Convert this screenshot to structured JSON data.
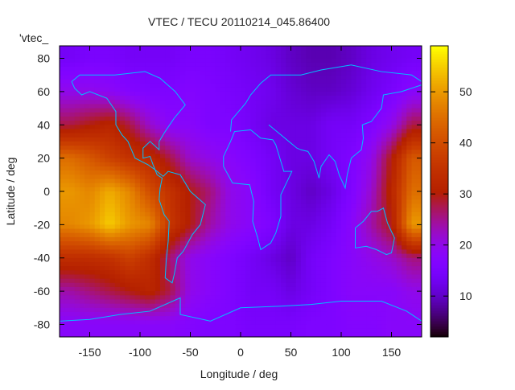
{
  "chart_data": {
    "type": "heatmap",
    "title": "VTEC / TECU 20110214_045.86400",
    "xlabel": "Longitude / deg",
    "ylabel": "Latitude / deg",
    "key_label": "'vtec_",
    "xlim": [
      -180,
      180
    ],
    "ylim": [
      -87.5,
      87.5
    ],
    "cblim": [
      2,
      59
    ],
    "xticks": [
      -150,
      -100,
      -50,
      0,
      50,
      100,
      150
    ],
    "yticks": [
      80,
      60,
      40,
      20,
      0,
      -20,
      -40,
      -60,
      -80
    ],
    "cbticks": [
      50,
      40,
      30,
      20,
      10
    ],
    "palette": "gnuplot rgbformulae 7,5,15 (black-purple-red-yellow)",
    "coastline_color": "#00c0ff",
    "grid_lon_centers": [
      -170,
      -150,
      -130,
      -110,
      -90,
      -70,
      -50,
      -30,
      -10,
      10,
      30,
      50,
      70,
      90,
      110,
      130,
      150,
      170
    ],
    "grid_lat_centers": [
      80,
      60,
      40,
      20,
      0,
      -20,
      -40,
      -60,
      -80
    ],
    "values": [
      [
        14,
        15,
        15,
        14,
        14,
        14,
        15,
        15,
        14,
        13,
        12,
        10,
        9,
        9,
        10,
        12,
        13,
        14
      ],
      [
        20,
        20,
        19,
        17,
        16,
        16,
        17,
        16,
        15,
        14,
        13,
        11,
        10,
        10,
        11,
        13,
        15,
        18
      ],
      [
        28,
        30,
        32,
        28,
        22,
        18,
        18,
        16,
        16,
        14,
        12,
        12,
        12,
        14,
        14,
        16,
        20,
        28
      ],
      [
        45,
        42,
        38,
        35,
        33,
        28,
        22,
        20,
        18,
        16,
        14,
        12,
        12,
        14,
        16,
        20,
        30,
        42
      ],
      [
        50,
        48,
        52,
        48,
        40,
        35,
        30,
        26,
        20,
        18,
        14,
        12,
        10,
        12,
        16,
        22,
        32,
        45
      ],
      [
        48,
        50,
        55,
        50,
        48,
        36,
        30,
        24,
        20,
        18,
        16,
        12,
        12,
        14,
        18,
        24,
        30,
        50
      ],
      [
        34,
        34,
        35,
        38,
        34,
        26,
        20,
        18,
        16,
        14,
        12,
        10,
        14,
        16,
        18,
        20,
        22,
        26
      ],
      [
        24,
        26,
        28,
        30,
        32,
        28,
        20,
        18,
        16,
        14,
        14,
        12,
        14,
        16,
        18,
        18,
        18,
        20
      ],
      [
        18,
        18,
        18,
        18,
        18,
        18,
        17,
        16,
        16,
        15,
        15,
        15,
        16,
        16,
        17,
        17,
        18,
        18
      ]
    ]
  }
}
